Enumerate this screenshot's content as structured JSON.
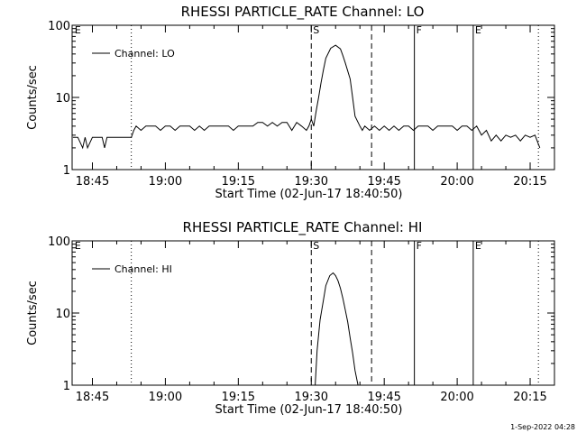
{
  "footer": {
    "timestamp": "1-Sep-2022 04:28"
  },
  "chart_data": [
    {
      "type": "line",
      "title": "RHESSI PARTICLE_RATE Channel: LO",
      "xlabel": "Start Time (02-Jun-17 18:40:50)",
      "ylabel": "Counts/sec",
      "yscale": "log",
      "ylim": [
        1,
        100
      ],
      "xlim_min": [
        40.83,
        140.0
      ],
      "y_ticks": [
        {
          "value": 1,
          "label": "1"
        },
        {
          "value": 10,
          "label": "10"
        },
        {
          "value": 100,
          "label": "100"
        }
      ],
      "x_ticks": [
        {
          "value": 45,
          "label": "18:45"
        },
        {
          "value": 60,
          "label": "19:00"
        },
        {
          "value": 75,
          "label": "19:15"
        },
        {
          "value": 90,
          "label": "19:30"
        },
        {
          "value": 105,
          "label": "19:45"
        },
        {
          "value": 120,
          "label": "20:00"
        },
        {
          "value": 135,
          "label": "20:15"
        }
      ],
      "legend": {
        "position": "top-left",
        "entries": [
          "Channel: LO"
        ]
      },
      "markers": [
        {
          "time": 41.0,
          "style": "none",
          "label": "E"
        },
        {
          "time": 53.0,
          "style": "dotted",
          "label": ""
        },
        {
          "time": 90.0,
          "style": "dashed",
          "label": "S"
        },
        {
          "time": 102.4,
          "style": "dashed",
          "label": ""
        },
        {
          "time": 111.2,
          "style": "solid",
          "label": "F"
        },
        {
          "time": 123.3,
          "style": "solid",
          "label": "E"
        },
        {
          "time": 136.7,
          "style": "dotted",
          "label": ""
        }
      ],
      "series": [
        {
          "name": "Channel: LO",
          "x": [
            41.0,
            42.0,
            43.0,
            43.5,
            44.0,
            45.0,
            46.0,
            47.0,
            47.5,
            48.0,
            49.0,
            50.0,
            51.0,
            52.0,
            53.0,
            53.5,
            54.0,
            55.0,
            56.0,
            57.0,
            58.0,
            59.0,
            60.0,
            61.0,
            62.0,
            63.0,
            64.0,
            65.0,
            66.0,
            67.0,
            68.0,
            69.0,
            70.0,
            71.0,
            72.0,
            73.0,
            74.0,
            75.0,
            76.0,
            77.0,
            78.0,
            79.0,
            80.0,
            81.0,
            82.0,
            83.0,
            84.0,
            85.0,
            86.0,
            87.0,
            88.0,
            89.0,
            89.5,
            90.0,
            90.5,
            91.0,
            91.5,
            92.0,
            92.5,
            93.0,
            94.0,
            95.0,
            96.0,
            96.5,
            97.0,
            98.0,
            98.5,
            99.0,
            100.0,
            100.5,
            101.0,
            102.0,
            103.0,
            104.0,
            105.0,
            106.0,
            107.0,
            108.0,
            109.0,
            110.0,
            111.0,
            112.0,
            113.0,
            114.0,
            115.0,
            116.0,
            117.0,
            118.0,
            119.0,
            120.0,
            121.0,
            122.0,
            123.0,
            124.0,
            125.0,
            126.0,
            127.0,
            128.0,
            129.0,
            130.0,
            131.0,
            132.0,
            133.0,
            134.0,
            135.0,
            136.0,
            137.0
          ],
          "y": [
            2.8,
            2.8,
            2.0,
            2.8,
            2.0,
            2.8,
            2.8,
            2.8,
            2.0,
            2.8,
            2.8,
            2.8,
            2.8,
            2.8,
            2.8,
            3.5,
            4.0,
            3.5,
            4.0,
            4.0,
            4.0,
            3.5,
            4.0,
            4.0,
            3.5,
            4.0,
            4.0,
            4.0,
            3.5,
            4.0,
            3.5,
            4.0,
            4.0,
            4.0,
            4.0,
            4.0,
            3.5,
            4.0,
            4.0,
            4.0,
            4.0,
            4.5,
            4.5,
            4.0,
            4.5,
            4.0,
            4.5,
            4.5,
            3.5,
            4.5,
            4.0,
            3.5,
            4.0,
            5.0,
            4.0,
            6.5,
            10.0,
            16.0,
            24.0,
            35.0,
            48.0,
            53.0,
            47.0,
            38.0,
            30.0,
            18.0,
            10.0,
            5.5,
            4.0,
            3.5,
            4.0,
            3.5,
            4.0,
            3.5,
            4.0,
            3.5,
            4.0,
            3.5,
            4.0,
            4.0,
            3.5,
            4.0,
            4.0,
            4.0,
            3.5,
            4.0,
            4.0,
            4.0,
            4.0,
            3.5,
            4.0,
            4.0,
            3.5,
            4.0,
            3.0,
            3.5,
            2.5,
            3.0,
            2.5,
            3.0,
            2.8,
            3.0,
            2.5,
            3.0,
            2.8,
            3.0,
            2.0
          ]
        }
      ]
    },
    {
      "type": "line",
      "title": "RHESSI PARTICLE_RATE Channel: HI",
      "xlabel": "Start Time (02-Jun-17 18:40:50)",
      "ylabel": "Counts/sec",
      "yscale": "log",
      "ylim": [
        1,
        100
      ],
      "xlim_min": [
        40.83,
        140.0
      ],
      "y_ticks": [
        {
          "value": 1,
          "label": "1"
        },
        {
          "value": 10,
          "label": "10"
        },
        {
          "value": 100,
          "label": "100"
        }
      ],
      "x_ticks": [
        {
          "value": 45,
          "label": "18:45"
        },
        {
          "value": 60,
          "label": "19:00"
        },
        {
          "value": 75,
          "label": "19:15"
        },
        {
          "value": 90,
          "label": "19:30"
        },
        {
          "value": 105,
          "label": "19:45"
        },
        {
          "value": 120,
          "label": "20:00"
        },
        {
          "value": 135,
          "label": "20:15"
        }
      ],
      "legend": {
        "position": "top-left",
        "entries": [
          "Channel: HI"
        ]
      },
      "markers": [
        {
          "time": 41.0,
          "style": "none",
          "label": "E"
        },
        {
          "time": 53.0,
          "style": "dotted",
          "label": ""
        },
        {
          "time": 90.0,
          "style": "dashed",
          "label": "S"
        },
        {
          "time": 102.4,
          "style": "dashed",
          "label": ""
        },
        {
          "time": 111.2,
          "style": "solid",
          "label": "F"
        },
        {
          "time": 123.3,
          "style": "solid",
          "label": "E"
        },
        {
          "time": 136.7,
          "style": "dotted",
          "label": ""
        }
      ],
      "series": [
        {
          "name": "Channel: HI",
          "x": [
            90.8,
            91.2,
            91.8,
            92.5,
            93.0,
            93.8,
            94.5,
            95.0,
            95.5,
            96.0,
            96.5,
            97.0,
            97.5,
            98.0,
            98.5,
            99.0,
            99.6
          ],
          "y": [
            1.0,
            3.0,
            8.0,
            15.0,
            24.0,
            33.0,
            36.0,
            33.0,
            28.0,
            22.0,
            16.0,
            11.0,
            7.5,
            4.5,
            2.8,
            1.6,
            1.0
          ]
        }
      ]
    }
  ]
}
